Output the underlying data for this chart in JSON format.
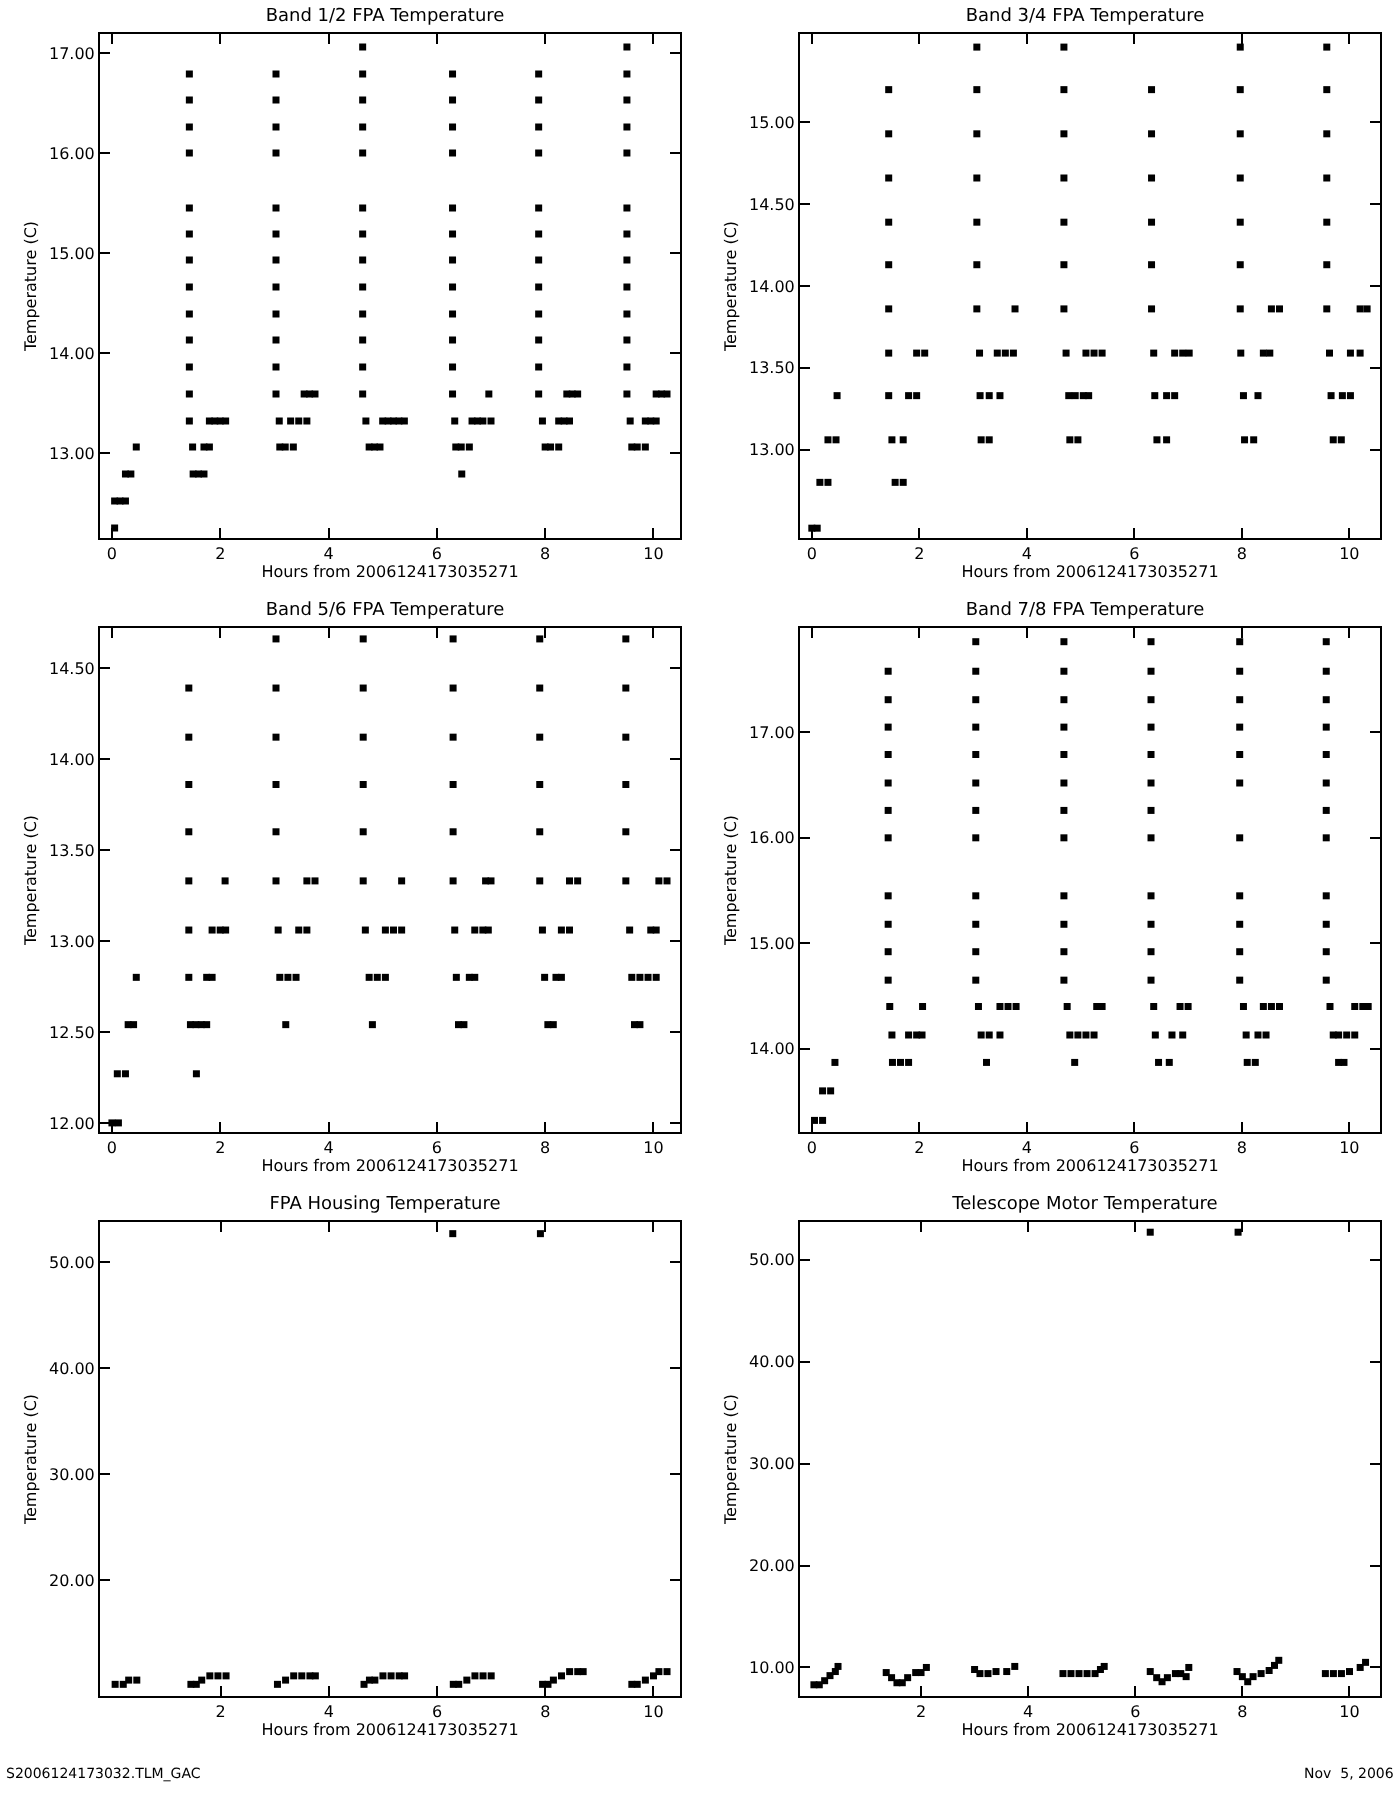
{
  "chart_data": [
    {
      "type": "scatter",
      "title": "Band 1/2 FPA Temperature",
      "xlabel": "Hours from 2006124173035271",
      "ylabel": "Temperature (C)",
      "marker": "square",
      "grid": false,
      "xlim": [
        -0.22,
        10.49
      ],
      "xticks": [
        0,
        2,
        4,
        6,
        8,
        10
      ],
      "ylim": [
        12.15,
        17.19
      ],
      "yticks": [
        {
          "value": 13,
          "label": "13.00"
        },
        {
          "value": 14,
          "label": "14.00"
        },
        {
          "value": 15,
          "label": "15.00"
        },
        {
          "value": 16,
          "label": "16.00"
        },
        {
          "value": 17,
          "label": "17.00"
        }
      ],
      "series": [
        {
          "color": "#000000",
          "x": [
            0.05,
            0.05,
            0.15,
            0.25,
            0.25,
            0.35,
            0.45,
            1.43,
            1.43,
            1.43,
            1.43,
            1.43,
            1.43,
            1.43,
            1.43,
            1.43,
            1.43,
            1.43,
            1.43,
            1.43,
            1.49,
            1.5,
            1.6,
            1.7,
            1.7,
            1.8,
            1.8,
            1.9,
            2.0,
            2.1,
            3.03,
            3.03,
            3.03,
            3.03,
            3.03,
            3.03,
            3.03,
            3.03,
            3.03,
            3.03,
            3.03,
            3.03,
            3.09,
            3.1,
            3.2,
            3.35,
            3.3,
            3.45,
            3.6,
            3.55,
            3.65,
            3.75,
            4.63,
            4.63,
            4.63,
            4.63,
            4.63,
            4.63,
            4.63,
            4.63,
            4.63,
            4.63,
            4.63,
            4.63,
            4.63,
            4.69,
            4.75,
            4.85,
            4.95,
            5.0,
            5.1,
            5.2,
            5.3,
            5.4,
            6.29,
            6.29,
            6.29,
            6.29,
            6.29,
            6.29,
            6.29,
            6.29,
            6.29,
            6.29,
            6.29,
            6.29,
            6.33,
            6.35,
            6.45,
            6.6,
            6.46,
            6.65,
            6.75,
            6.85,
            7.0,
            6.96,
            7.88,
            7.88,
            7.88,
            7.88,
            7.88,
            7.88,
            7.88,
            7.88,
            7.88,
            7.88,
            7.88,
            7.88,
            7.95,
            8.0,
            8.1,
            8.25,
            8.25,
            8.35,
            8.45,
            8.4,
            8.5,
            8.6,
            9.51,
            9.51,
            9.51,
            9.51,
            9.51,
            9.51,
            9.51,
            9.51,
            9.51,
            9.51,
            9.51,
            9.51,
            9.51,
            9.57,
            9.6,
            9.7,
            9.85,
            9.85,
            9.95,
            10.05,
            10.05,
            10.15,
            10.25
          ],
          "values": [
            12.25,
            12.52,
            12.52,
            12.52,
            12.79,
            12.79,
            13.06,
            16.79,
            16.53,
            16.26,
            16.0,
            15.45,
            15.19,
            14.93,
            14.66,
            14.39,
            14.13,
            13.86,
            13.59,
            13.32,
            13.06,
            12.79,
            12.79,
            12.79,
            13.06,
            13.06,
            13.32,
            13.32,
            13.32,
            13.32,
            16.79,
            16.53,
            16.26,
            16.0,
            15.45,
            15.19,
            14.93,
            14.66,
            14.39,
            14.13,
            13.86,
            13.59,
            13.32,
            13.06,
            13.06,
            13.06,
            13.32,
            13.32,
            13.32,
            13.59,
            13.59,
            13.59,
            17.06,
            16.79,
            16.53,
            16.26,
            16.0,
            15.45,
            15.19,
            14.93,
            14.66,
            14.39,
            14.13,
            13.86,
            13.59,
            13.32,
            13.06,
            13.06,
            13.06,
            13.32,
            13.32,
            13.32,
            13.32,
            13.32,
            16.79,
            16.53,
            16.26,
            16.0,
            15.45,
            15.19,
            14.93,
            14.66,
            14.39,
            14.13,
            13.86,
            13.59,
            13.32,
            13.06,
            13.06,
            13.06,
            12.79,
            13.32,
            13.32,
            13.32,
            13.32,
            13.59,
            16.79,
            16.53,
            16.26,
            16.0,
            15.45,
            15.19,
            14.93,
            14.66,
            14.39,
            14.13,
            13.86,
            13.59,
            13.32,
            13.06,
            13.06,
            13.06,
            13.32,
            13.32,
            13.32,
            13.59,
            13.59,
            13.59,
            17.06,
            16.79,
            16.53,
            16.26,
            16.0,
            15.45,
            15.19,
            14.93,
            14.66,
            14.39,
            14.13,
            13.86,
            13.59,
            13.32,
            13.06,
            13.06,
            13.06,
            13.32,
            13.32,
            13.32,
            13.59,
            13.59,
            13.59
          ]
        }
      ]
    },
    {
      "type": "scatter",
      "title": "Band 3/4 FPA Temperature",
      "xlabel": "Hours from 2006124173035271",
      "ylabel": "Temperature (C)",
      "marker": "square",
      "grid": false,
      "xlim": [
        -0.22,
        10.57
      ],
      "xticks": [
        0,
        2,
        4,
        6,
        8,
        10
      ],
      "ylim": [
        12.46,
        15.54
      ],
      "yticks": [
        {
          "value": 13,
          "label": "13.00"
        },
        {
          "value": 13.5,
          "label": "13.50"
        },
        {
          "value": 14,
          "label": "14.00"
        },
        {
          "value": 14.5,
          "label": "14.50"
        },
        {
          "value": 15,
          "label": "15.00"
        }
      ],
      "series": [
        {
          "color": "#000000",
          "x": [
            0.0,
            0.1,
            0.15,
            0.3,
            0.3,
            0.45,
            0.47,
            1.43,
            1.43,
            1.43,
            1.43,
            1.43,
            1.43,
            1.43,
            1.43,
            1.49,
            1.55,
            1.7,
            1.7,
            1.8,
            1.95,
            1.95,
            2.1,
            3.07,
            3.07,
            3.07,
            3.07,
            3.07,
            3.07,
            3.07,
            3.12,
            3.13,
            3.15,
            3.3,
            3.3,
            3.5,
            3.45,
            3.6,
            3.75,
            3.78,
            4.69,
            4.69,
            4.69,
            4.69,
            4.69,
            4.69,
            4.69,
            4.73,
            4.78,
            4.8,
            4.95,
            4.9,
            5.05,
            5.15,
            5.1,
            5.25,
            5.4,
            6.32,
            6.32,
            6.32,
            6.32,
            6.32,
            6.32,
            6.36,
            6.38,
            6.42,
            6.6,
            6.6,
            6.75,
            6.75,
            6.9,
            7.02,
            7.97,
            7.97,
            7.97,
            7.97,
            7.97,
            7.97,
            7.97,
            7.98,
            8.03,
            8.05,
            8.22,
            8.3,
            8.4,
            8.52,
            8.55,
            8.7,
            9.58,
            9.58,
            9.58,
            9.58,
            9.58,
            9.58,
            9.58,
            9.63,
            9.66,
            9.7,
            9.85,
            9.87,
            10.02,
            10.02,
            10.2,
            10.2,
            10.33
          ],
          "values": [
            12.52,
            12.52,
            12.8,
            12.8,
            13.06,
            13.06,
            13.33,
            15.2,
            14.93,
            14.66,
            14.39,
            14.13,
            13.86,
            13.59,
            13.33,
            13.06,
            12.8,
            12.8,
            13.06,
            13.33,
            13.33,
            13.59,
            13.59,
            15.46,
            15.2,
            14.93,
            14.66,
            14.39,
            14.13,
            13.86,
            13.59,
            13.33,
            13.06,
            13.06,
            13.33,
            13.33,
            13.59,
            13.59,
            13.59,
            13.86,
            15.46,
            15.2,
            14.93,
            14.66,
            14.39,
            14.13,
            13.86,
            13.59,
            13.33,
            13.06,
            13.06,
            13.33,
            13.33,
            13.33,
            13.59,
            13.59,
            13.59,
            15.2,
            14.93,
            14.66,
            14.39,
            14.13,
            13.86,
            13.59,
            13.33,
            13.06,
            13.06,
            13.33,
            13.33,
            13.59,
            13.59,
            13.59,
            15.46,
            15.2,
            14.93,
            14.66,
            14.39,
            14.13,
            13.86,
            13.59,
            13.33,
            13.06,
            13.06,
            13.33,
            13.59,
            13.59,
            13.86,
            13.86,
            15.46,
            15.2,
            14.93,
            14.66,
            14.39,
            14.13,
            13.86,
            13.59,
            13.33,
            13.06,
            13.06,
            13.33,
            13.33,
            13.59,
            13.59,
            13.86,
            13.86
          ]
        }
      ]
    },
    {
      "type": "scatter",
      "title": "Band 5/6 FPA Temperature",
      "xlabel": "Hours from 2006124173035271",
      "ylabel": "Temperature (C)",
      "marker": "square",
      "grid": false,
      "xlim": [
        -0.22,
        10.49
      ],
      "xticks": [
        0,
        2,
        4,
        6,
        8,
        10
      ],
      "ylim": [
        11.95,
        14.72
      ],
      "yticks": [
        {
          "value": 12,
          "label": "12.00"
        },
        {
          "value": 12.5,
          "label": "12.50"
        },
        {
          "value": 13,
          "label": "13.00"
        },
        {
          "value": 13.5,
          "label": "13.50"
        },
        {
          "value": 14,
          "label": "14.00"
        },
        {
          "value": 14.5,
          "label": "14.50"
        }
      ],
      "series": [
        {
          "color": "#000000",
          "x": [
            0.0,
            0.12,
            0.1,
            0.25,
            0.3,
            0.4,
            0.45,
            1.42,
            1.42,
            1.42,
            1.42,
            1.42,
            1.42,
            1.42,
            1.45,
            1.55,
            1.65,
            1.75,
            1.56,
            1.75,
            1.85,
            1.85,
            2.0,
            2.1,
            2.09,
            3.03,
            3.03,
            3.03,
            3.03,
            3.03,
            3.03,
            3.07,
            3.1,
            3.25,
            3.4,
            3.21,
            3.45,
            3.6,
            3.6,
            3.75,
            4.64,
            4.64,
            4.64,
            4.64,
            4.64,
            4.64,
            4.68,
            4.75,
            4.9,
            5.05,
            4.81,
            5.05,
            5.2,
            5.35,
            5.35,
            6.3,
            6.3,
            6.3,
            6.3,
            6.3,
            6.3,
            6.33,
            6.36,
            6.4,
            6.5,
            6.6,
            6.7,
            6.7,
            6.85,
            6.95,
            6.9,
            7.0,
            7.9,
            7.9,
            7.9,
            7.9,
            7.9,
            7.9,
            7.95,
            7.99,
            8.05,
            8.15,
            8.2,
            8.3,
            8.3,
            8.45,
            8.45,
            8.6,
            9.49,
            9.49,
            9.49,
            9.49,
            9.49,
            9.49,
            9.56,
            9.6,
            9.75,
            9.9,
            10.05,
            9.65,
            9.75,
            9.95,
            10.05,
            10.1,
            10.25
          ],
          "values": [
            12.0,
            12.0,
            12.27,
            12.27,
            12.54,
            12.54,
            12.8,
            14.39,
            14.12,
            13.86,
            13.6,
            13.33,
            13.06,
            12.8,
            12.54,
            12.54,
            12.54,
            12.54,
            12.27,
            12.8,
            12.8,
            13.06,
            13.06,
            13.06,
            13.33,
            14.66,
            14.39,
            14.12,
            13.86,
            13.6,
            13.33,
            13.06,
            12.8,
            12.8,
            12.8,
            12.54,
            13.06,
            13.06,
            13.33,
            13.33,
            14.66,
            14.39,
            14.12,
            13.86,
            13.6,
            13.33,
            13.06,
            12.8,
            12.8,
            12.8,
            12.54,
            13.06,
            13.06,
            13.06,
            13.33,
            14.66,
            14.39,
            14.12,
            13.86,
            13.6,
            13.33,
            13.06,
            12.8,
            12.54,
            12.54,
            12.8,
            12.8,
            13.06,
            13.06,
            13.06,
            13.33,
            13.33,
            14.66,
            14.39,
            14.12,
            13.86,
            13.6,
            13.33,
            13.06,
            12.8,
            12.54,
            12.54,
            12.8,
            12.8,
            13.06,
            13.06,
            13.33,
            13.33,
            14.66,
            14.39,
            14.12,
            13.86,
            13.6,
            13.33,
            13.06,
            12.8,
            12.8,
            12.8,
            12.8,
            12.54,
            12.54,
            13.06,
            13.06,
            13.33,
            13.33
          ]
        }
      ]
    },
    {
      "type": "scatter",
      "title": "Band 7/8 FPA Temperature",
      "xlabel": "Hours from 2006124173035271",
      "ylabel": "Temperature (C)",
      "marker": "square",
      "grid": false,
      "xlim": [
        -0.22,
        10.57
      ],
      "xticks": [
        0,
        2,
        4,
        6,
        8,
        10
      ],
      "ylim": [
        13.21,
        17.99
      ],
      "yticks": [
        {
          "value": 14,
          "label": "14.00"
        },
        {
          "value": 15,
          "label": "15.00"
        },
        {
          "value": 16,
          "label": "16.00"
        },
        {
          "value": 17,
          "label": "17.00"
        }
      ],
      "series": [
        {
          "color": "#000000",
          "x": [
            0.05,
            0.2,
            0.2,
            0.35,
            0.43,
            1.42,
            1.42,
            1.42,
            1.42,
            1.42,
            1.42,
            1.42,
            1.42,
            1.42,
            1.42,
            1.42,
            1.45,
            1.49,
            1.5,
            1.65,
            1.8,
            1.8,
            1.95,
            2.05,
            2.06,
            3.05,
            3.05,
            3.05,
            3.05,
            3.05,
            3.05,
            3.05,
            3.05,
            3.05,
            3.05,
            3.05,
            3.05,
            3.1,
            3.15,
            3.3,
            3.5,
            3.25,
            3.5,
            3.65,
            3.8,
            4.69,
            4.69,
            4.69,
            4.69,
            4.69,
            4.69,
            4.69,
            4.69,
            4.69,
            4.69,
            4.69,
            4.69,
            4.75,
            4.8,
            4.95,
            5.1,
            5.25,
            4.89,
            5.3,
            5.4,
            6.31,
            6.31,
            6.31,
            6.31,
            6.31,
            6.31,
            6.31,
            6.31,
            6.31,
            6.31,
            6.31,
            6.31,
            6.36,
            6.39,
            6.45,
            6.65,
            6.7,
            6.9,
            6.85,
            7.0,
            7.96,
            7.96,
            7.96,
            7.96,
            7.96,
            7.96,
            7.96,
            7.96,
            7.96,
            7.96,
            7.96,
            8.03,
            8.08,
            8.1,
            8.25,
            8.3,
            8.45,
            8.4,
            8.55,
            8.7,
            9.57,
            9.57,
            9.57,
            9.57,
            9.57,
            9.57,
            9.57,
            9.57,
            9.57,
            9.57,
            9.57,
            9.57,
            9.64,
            9.7,
            9.8,
            9.8,
            9.9,
            9.95,
            10.1,
            10.1,
            10.25,
            10.35
          ],
          "values": [
            13.32,
            13.32,
            13.6,
            13.6,
            13.87,
            17.58,
            17.31,
            17.05,
            16.79,
            16.52,
            16.26,
            16.0,
            15.45,
            15.18,
            14.92,
            14.65,
            14.4,
            14.13,
            13.87,
            13.87,
            13.87,
            14.13,
            14.13,
            14.13,
            14.4,
            17.86,
            17.58,
            17.31,
            17.05,
            16.79,
            16.52,
            16.26,
            16.0,
            15.45,
            15.18,
            14.92,
            14.65,
            14.4,
            14.13,
            14.13,
            14.13,
            13.87,
            14.4,
            14.4,
            14.4,
            17.86,
            17.58,
            17.31,
            17.05,
            16.79,
            16.52,
            16.26,
            16.0,
            15.45,
            15.18,
            14.92,
            14.65,
            14.4,
            14.13,
            14.13,
            14.13,
            14.13,
            13.87,
            14.4,
            14.4,
            17.86,
            17.58,
            17.31,
            17.05,
            16.79,
            16.52,
            16.26,
            16.0,
            15.45,
            15.18,
            14.92,
            14.65,
            14.4,
            14.13,
            13.87,
            13.87,
            14.13,
            14.13,
            14.4,
            14.4,
            17.86,
            17.58,
            17.31,
            17.05,
            16.79,
            16.52,
            16.0,
            15.45,
            15.18,
            14.92,
            14.65,
            14.4,
            14.13,
            13.87,
            13.87,
            14.13,
            14.13,
            14.4,
            14.4,
            14.4,
            17.86,
            17.58,
            17.31,
            17.05,
            16.79,
            16.52,
            16.26,
            16.0,
            15.45,
            15.18,
            14.92,
            14.65,
            14.4,
            14.13,
            14.13,
            13.87,
            13.87,
            14.13,
            14.13,
            14.4,
            14.4,
            14.4
          ]
        }
      ]
    },
    {
      "type": "scatter",
      "title": "FPA Housing Temperature",
      "xlabel": "Hours from 2006124173035271",
      "ylabel": "Temperature (C)",
      "marker": "square",
      "grid": false,
      "annotations": [
        "S2006124173032.TLM_GAC"
      ],
      "xlim": [
        -0.23,
        10.49
      ],
      "xticks": [
        2,
        4,
        6,
        8,
        10
      ],
      "ylim": [
        9.1,
        53.8
      ],
      "yticks": [
        {
          "value": 20,
          "label": "20.00"
        },
        {
          "value": 30,
          "label": "30.00"
        },
        {
          "value": 40,
          "label": "40.00"
        },
        {
          "value": 50,
          "label": "50.00"
        }
      ],
      "series": [
        {
          "color": "#000000",
          "x": [
            0.05,
            0.2,
            0.3,
            0.45,
            1.45,
            1.55,
            1.65,
            1.8,
            1.95,
            2.1,
            3.05,
            3.2,
            3.35,
            3.5,
            3.65,
            3.75,
            4.65,
            4.75,
            4.85,
            5.0,
            5.15,
            5.3,
            5.4,
            6.3,
            6.4,
            6.55,
            6.7,
            6.85,
            7.0,
            7.95,
            8.05,
            8.15,
            8.3,
            8.45,
            8.6,
            8.7,
            9.6,
            9.7,
            9.85,
            10.0,
            10.1,
            10.25,
            6.29,
            7.91
          ],
          "values": [
            10.2,
            10.2,
            10.6,
            10.6,
            10.2,
            10.2,
            10.6,
            11.0,
            11.0,
            11.0,
            10.2,
            10.6,
            11.0,
            11.0,
            11.0,
            11.0,
            10.2,
            10.6,
            10.6,
            11.0,
            11.0,
            11.0,
            11.0,
            10.2,
            10.2,
            10.6,
            11.0,
            11.0,
            11.0,
            10.2,
            10.2,
            10.6,
            11.0,
            11.4,
            11.4,
            11.4,
            10.2,
            10.2,
            10.6,
            11.0,
            11.4,
            11.4,
            52.7,
            52.7
          ]
        }
      ]
    },
    {
      "type": "scatter",
      "title": "Telescope Motor Temperature",
      "xlabel": "Hours from 2006124173035271",
      "ylabel": "Temperature (C)",
      "marker": "square",
      "grid": false,
      "annotations": [
        "Nov  5, 2006"
      ],
      "xlim": [
        -0.26,
        10.57
      ],
      "xticks": [
        2,
        4,
        6,
        8,
        10
      ],
      "ylim": [
        7.2,
        53.7
      ],
      "yticks": [
        {
          "value": 10,
          "label": "10.00"
        },
        {
          "value": 20,
          "label": "20.00"
        },
        {
          "value": 30,
          "label": "30.00"
        },
        {
          "value": 40,
          "label": "40.00"
        },
        {
          "value": 50,
          "label": "50.00"
        }
      ],
      "series": [
        {
          "color": "#000000",
          "x": [
            0.0,
            0.1,
            0.2,
            0.3,
            0.4,
            0.45,
            1.35,
            1.45,
            1.55,
            1.65,
            1.75,
            1.9,
            2.0,
            2.1,
            3.0,
            3.1,
            3.25,
            3.4,
            3.6,
            3.75,
            4.65,
            4.8,
            4.95,
            5.1,
            5.25,
            5.35,
            5.42,
            6.28,
            6.4,
            6.5,
            6.6,
            6.75,
            6.85,
            6.95,
            7.0,
            7.9,
            8.0,
            8.1,
            8.2,
            8.35,
            8.5,
            8.6,
            8.68,
            9.55,
            9.7,
            9.85,
            10.0,
            10.2,
            10.3,
            6.28,
            7.92
          ],
          "values": [
            8.3,
            8.3,
            8.7,
            9.2,
            9.6,
            10.1,
            9.5,
            9.0,
            8.5,
            8.5,
            9.0,
            9.5,
            9.5,
            10.0,
            9.8,
            9.4,
            9.4,
            9.6,
            9.6,
            10.1,
            9.4,
            9.4,
            9.4,
            9.4,
            9.4,
            9.8,
            10.1,
            9.6,
            9.0,
            8.6,
            9.0,
            9.4,
            9.4,
            9.1,
            10.0,
            9.6,
            9.1,
            8.6,
            9.1,
            9.4,
            9.7,
            10.2,
            10.7,
            9.4,
            9.4,
            9.4,
            9.6,
            10.0,
            10.5,
            52.7,
            52.7
          ]
        }
      ]
    }
  ]
}
